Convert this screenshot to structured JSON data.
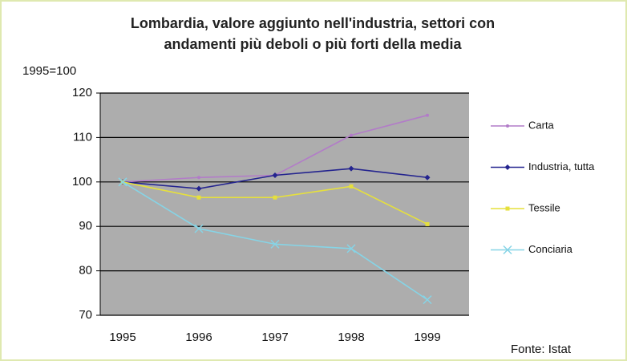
{
  "chart_data": {
    "type": "line",
    "title": [
      "Lombardia, valore aggiunto nell'industria, settori con",
      "andamenti più deboli o più forti della media"
    ],
    "y_label": "1995=100",
    "source": "Fonte: Istat",
    "categories": [
      "1995",
      "1996",
      "1997",
      "1998",
      "1999"
    ],
    "series": [
      {
        "name": "Carta",
        "color": "#b27cc8",
        "marker": "dot",
        "values": [
          100,
          101,
          101.5,
          110.5,
          115
        ]
      },
      {
        "name": "Industria, tutta",
        "color": "#24248f",
        "marker": "diamond",
        "values": [
          100,
          98.5,
          101.5,
          103,
          101
        ]
      },
      {
        "name": "Tessile",
        "color": "#e6e03c",
        "marker": "square",
        "values": [
          100,
          96.5,
          96.5,
          99,
          90.5
        ]
      },
      {
        "name": "Conciaria",
        "color": "#86d4e6",
        "marker": "x",
        "values": [
          100,
          89.5,
          86,
          85,
          73.5
        ]
      }
    ],
    "ylim": [
      70,
      120
    ],
    "yticks": [
      70,
      80,
      90,
      100,
      110,
      120
    ],
    "grid": true,
    "legend": "right"
  }
}
